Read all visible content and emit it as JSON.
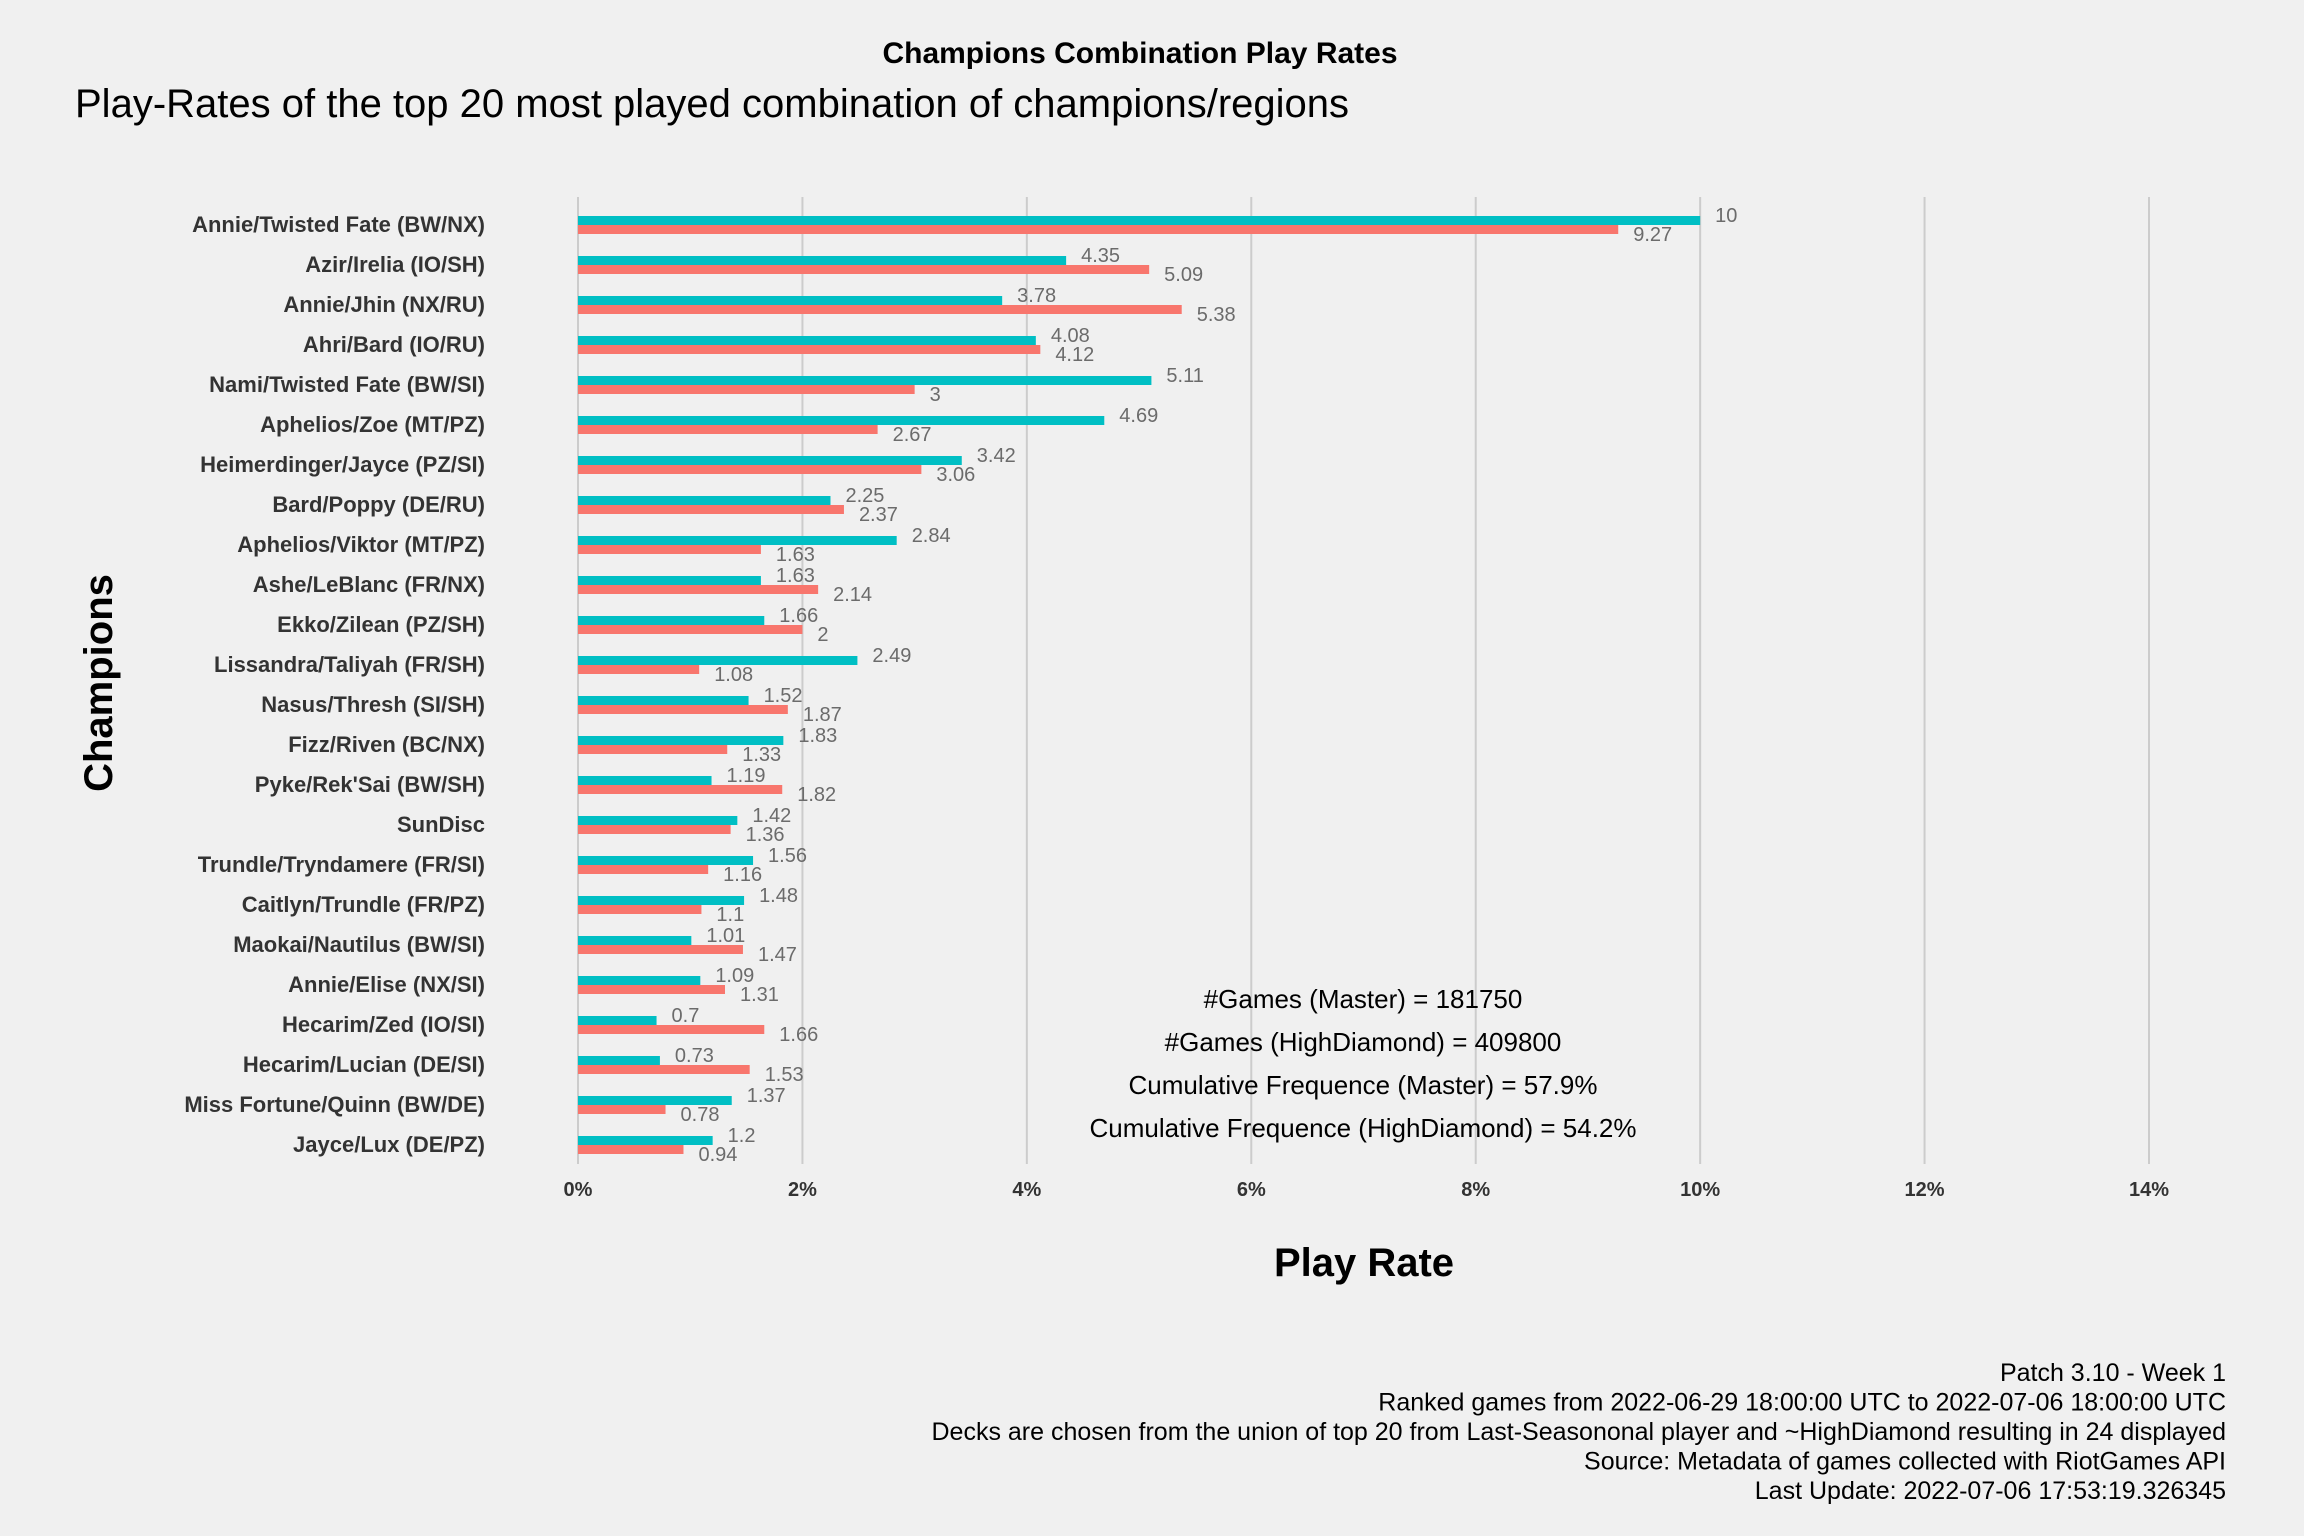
{
  "chart_data": {
    "type": "bar",
    "title": "Champions Combination Play Rates",
    "subtitle": "Play-Rates of the top 20 most played combination of champions/regions",
    "xlabel": "Play Rate",
    "ylabel": "Champions",
    "xlim": [
      0,
      14
    ],
    "x_ticks": [
      "0%",
      "2%",
      "4%",
      "6%",
      "8%",
      "10%",
      "12%",
      "14%"
    ],
    "grid": "vertical",
    "orientation": "horizontal",
    "categories": [
      "Annie/Twisted Fate (BW/NX)",
      "Azir/Irelia (IO/SH)",
      "Annie/Jhin (NX/RU)",
      "Ahri/Bard (IO/RU)",
      "Nami/Twisted Fate (BW/SI)",
      "Aphelios/Zoe (MT/PZ)",
      "Heimerdinger/Jayce (PZ/SI)",
      "Bard/Poppy (DE/RU)",
      "Aphelios/Viktor (MT/PZ)",
      "Ashe/LeBlanc (FR/NX)",
      "Ekko/Zilean (PZ/SH)",
      "Lissandra/Taliyah (FR/SH)",
      "Nasus/Thresh (SI/SH)",
      "Fizz/Riven (BC/NX)",
      "Pyke/Rek'Sai (BW/SH)",
      "SunDisc",
      "Trundle/Tryndamere (FR/SI)",
      "Caitlyn/Trundle (FR/PZ)",
      "Maokai/Nautilus (BW/SI)",
      "Annie/Elise (NX/SI)",
      "Hecarim/Zed (IO/SI)",
      "Hecarim/Lucian (DE/SI)",
      "Miss Fortune/Quinn (BW/DE)",
      "Jayce/Lux (DE/PZ)"
    ],
    "series": [
      {
        "color": "#00bfc4",
        "values": [
          10,
          4.35,
          3.78,
          4.08,
          5.11,
          4.69,
          3.42,
          2.25,
          2.84,
          1.63,
          1.66,
          2.49,
          1.52,
          1.83,
          1.19,
          1.42,
          1.56,
          1.48,
          1.01,
          1.09,
          0.7,
          0.73,
          1.37,
          1.2
        ]
      },
      {
        "color": "#f8766d",
        "values": [
          9.27,
          5.09,
          5.38,
          4.12,
          3,
          2.67,
          3.06,
          2.37,
          1.63,
          2.14,
          2,
          1.08,
          1.87,
          1.33,
          1.82,
          1.36,
          1.16,
          1.1,
          1.47,
          1.31,
          1.66,
          1.53,
          0.78,
          0.94
        ]
      }
    ],
    "annotations": [
      "#Games (Master) = 181750",
      "#Games (HighDiamond) = 409800",
      "Cumulative Frequence (Master) = 57.9%",
      "Cumulative Frequence (HighDiamond) = 54.2%"
    ],
    "caption": [
      "Patch 3.10 - Week 1",
      "Ranked games from 2022-06-29 18:00:00 UTC to 2022-07-06 18:00:00 UTC",
      "Decks are chosen from the union of top 20 from Last-Seasononal player and ~HighDiamond resulting in 24 displayed",
      "Source: Metadata of games collected with RiotGames API",
      "Last Update: 2022-07-06 17:53:19.326345"
    ]
  }
}
